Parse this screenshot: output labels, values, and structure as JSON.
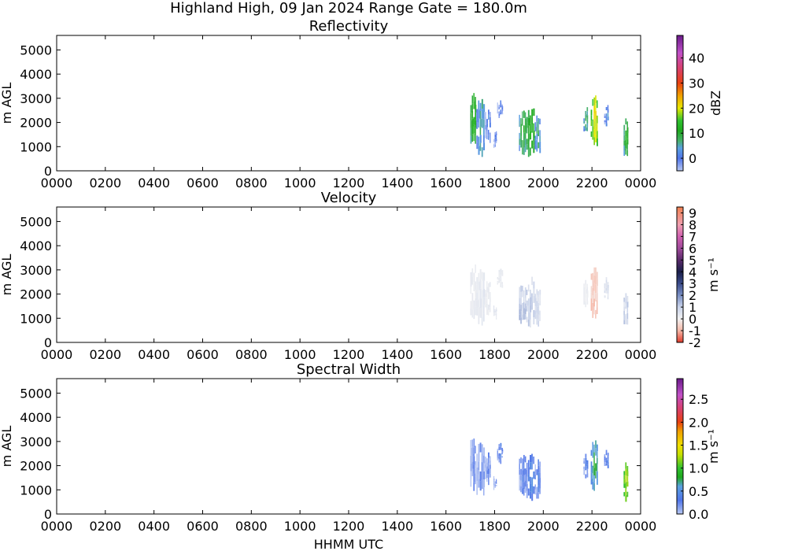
{
  "figure": {
    "title": "Highland High, 09 Jan 2024 Range Gate = 180.0m",
    "xlabel": "HHMM UTC"
  },
  "chart_data": [
    {
      "type": "heatmap",
      "title": "Reflectivity",
      "xlabel": "",
      "ylabel": "m AGL",
      "xlim": [
        0,
        2400
      ],
      "ylim": [
        0,
        5600
      ],
      "x_ticks": [
        "0000",
        "0200",
        "0400",
        "0600",
        "0800",
        "1000",
        "1200",
        "1400",
        "1600",
        "1800",
        "2000",
        "2200",
        "0000"
      ],
      "y_ticks": [
        "0",
        "1000",
        "2000",
        "3000",
        "4000",
        "5000"
      ],
      "colorbar": {
        "label": "dBZ",
        "range": [
          -5,
          49
        ],
        "ticks": [
          "0",
          "10",
          "20",
          "30",
          "40"
        ]
      },
      "echo_regions": [
        {
          "x": [
            1700,
            1725
          ],
          "y": [
            1100,
            3200
          ],
          "core_value": 15
        },
        {
          "x": [
            1725,
            1760
          ],
          "y": [
            700,
            2900
          ],
          "core_value": 8
        },
        {
          "x": [
            1760,
            1785
          ],
          "y": [
            1200,
            2500
          ],
          "core_value": 3
        },
        {
          "x": [
            1795,
            1810
          ],
          "y": [
            1000,
            1500
          ],
          "core_value": 2
        },
        {
          "x": [
            1810,
            1835
          ],
          "y": [
            2200,
            2900
          ],
          "core_value": 2
        },
        {
          "x": [
            1900,
            1930
          ],
          "y": [
            800,
            2400
          ],
          "core_value": 12
        },
        {
          "x": [
            1930,
            1965
          ],
          "y": [
            600,
            2600
          ],
          "core_value": 15
        },
        {
          "x": [
            1965,
            1990
          ],
          "y": [
            700,
            2200
          ],
          "core_value": 8
        },
        {
          "x": [
            2165,
            2185
          ],
          "y": [
            1500,
            2500
          ],
          "core_value": 10
        },
        {
          "x": [
            2195,
            2225
          ],
          "y": [
            1100,
            3000
          ],
          "core_value": 22
        },
        {
          "x": [
            2250,
            2270
          ],
          "y": [
            1900,
            2600
          ],
          "core_value": 5
        },
        {
          "x": [
            2330,
            2350
          ],
          "y": [
            600,
            2100
          ],
          "core_value": 14
        }
      ]
    },
    {
      "type": "heatmap",
      "title": "Velocity",
      "xlabel": "",
      "ylabel": "m AGL",
      "xlim": [
        0,
        2400
      ],
      "ylim": [
        0,
        5600
      ],
      "x_ticks": [
        "0000",
        "0200",
        "0400",
        "0600",
        "0800",
        "1000",
        "1200",
        "1400",
        "1600",
        "1800",
        "2000",
        "2200",
        "0000"
      ],
      "y_ticks": [
        "0",
        "1000",
        "2000",
        "3000",
        "4000",
        "5000"
      ],
      "colorbar": {
        "label": "m s⁻¹",
        "range": [
          -2,
          9.5
        ],
        "ticks": [
          "-2",
          "-1",
          "0",
          "1",
          "2",
          "3",
          "4",
          "5",
          "6",
          "7",
          "8",
          "9"
        ]
      },
      "echo_regions": [
        {
          "x": [
            1700,
            1725
          ],
          "y": [
            1100,
            3200
          ],
          "core_value": 0.3
        },
        {
          "x": [
            1725,
            1760
          ],
          "y": [
            700,
            2900
          ],
          "core_value": 0.4
        },
        {
          "x": [
            1760,
            1785
          ],
          "y": [
            1200,
            2500
          ],
          "core_value": 0.3
        },
        {
          "x": [
            1795,
            1810
          ],
          "y": [
            1000,
            1500
          ],
          "core_value": 0.5
        },
        {
          "x": [
            1810,
            1835
          ],
          "y": [
            2200,
            2900
          ],
          "core_value": 0.3
        },
        {
          "x": [
            1900,
            1930
          ],
          "y": [
            800,
            2400
          ],
          "core_value": 1.2
        },
        {
          "x": [
            1930,
            1965
          ],
          "y": [
            600,
            2600
          ],
          "core_value": 1.0
        },
        {
          "x": [
            1965,
            1990
          ],
          "y": [
            700,
            2200
          ],
          "core_value": 0.8
        },
        {
          "x": [
            2165,
            2185
          ],
          "y": [
            1500,
            2500
          ],
          "core_value": 0.2
        },
        {
          "x": [
            2195,
            2225
          ],
          "y": [
            1100,
            3000
          ],
          "core_value": -0.8
        },
        {
          "x": [
            2250,
            2270
          ],
          "y": [
            1900,
            2600
          ],
          "core_value": 0.6
        },
        {
          "x": [
            2330,
            2350
          ],
          "y": [
            600,
            2100
          ],
          "core_value": 1.0
        }
      ]
    },
    {
      "type": "heatmap",
      "title": "Spectral Width",
      "xlabel": "HHMM UTC",
      "ylabel": "m AGL",
      "xlim": [
        0,
        2400
      ],
      "ylim": [
        0,
        5600
      ],
      "x_ticks": [
        "0000",
        "0200",
        "0400",
        "0600",
        "0800",
        "1000",
        "1200",
        "1400",
        "1600",
        "1800",
        "2000",
        "2200",
        "0000"
      ],
      "y_ticks": [
        "0",
        "1000",
        "2000",
        "3000",
        "4000",
        "5000"
      ],
      "colorbar": {
        "label": "m s⁻¹",
        "range": [
          0,
          2.95
        ],
        "ticks": [
          "0.0",
          "0.5",
          "1.0",
          "1.5",
          "2.0",
          "2.5"
        ]
      },
      "echo_regions": [
        {
          "x": [
            1700,
            1725
          ],
          "y": [
            1100,
            3200
          ],
          "core_value": 0.3
        },
        {
          "x": [
            1725,
            1760
          ],
          "y": [
            700,
            2900
          ],
          "core_value": 0.3
        },
        {
          "x": [
            1760,
            1785
          ],
          "y": [
            1200,
            2500
          ],
          "core_value": 0.3
        },
        {
          "x": [
            1795,
            1810
          ],
          "y": [
            1000,
            1500
          ],
          "core_value": 0.3
        },
        {
          "x": [
            1810,
            1835
          ],
          "y": [
            2200,
            2900
          ],
          "core_value": 0.4
        },
        {
          "x": [
            1900,
            1930
          ],
          "y": [
            800,
            2400
          ],
          "core_value": 0.4
        },
        {
          "x": [
            1930,
            1965
          ],
          "y": [
            600,
            2600
          ],
          "core_value": 0.5
        },
        {
          "x": [
            1965,
            1990
          ],
          "y": [
            700,
            2200
          ],
          "core_value": 0.4
        },
        {
          "x": [
            2165,
            2185
          ],
          "y": [
            1500,
            2500
          ],
          "core_value": 0.4
        },
        {
          "x": [
            2195,
            2225
          ],
          "y": [
            1100,
            3000
          ],
          "core_value": 0.8
        },
        {
          "x": [
            2250,
            2270
          ],
          "y": [
            1900,
            2600
          ],
          "core_value": 0.5
        },
        {
          "x": [
            2330,
            2350
          ],
          "y": [
            600,
            2100
          ],
          "core_value": 1.3
        }
      ]
    }
  ]
}
